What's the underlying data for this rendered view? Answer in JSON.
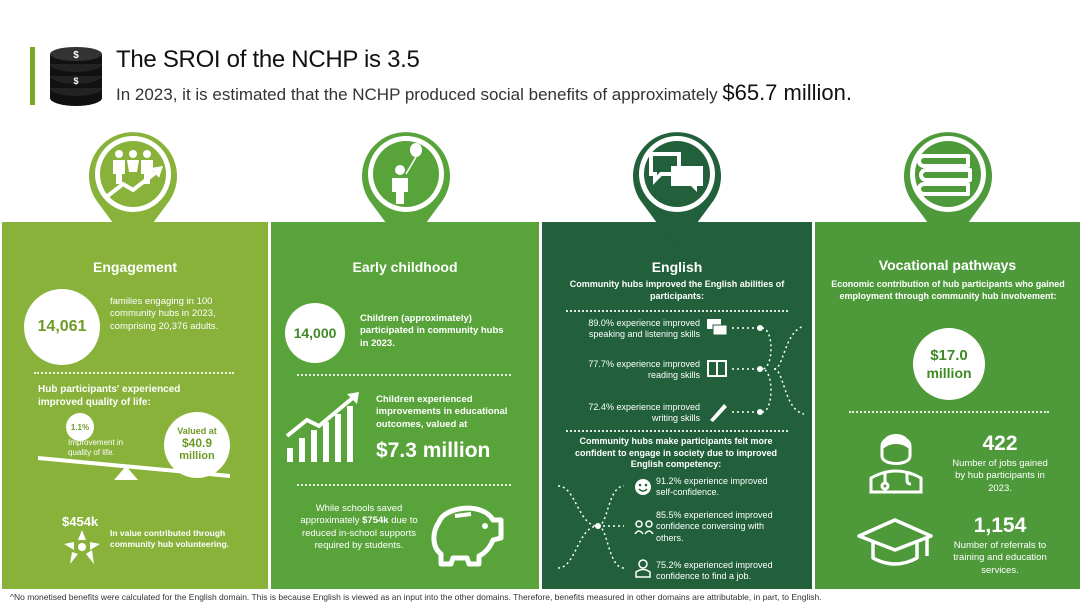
{
  "header": {
    "title": "The SROI of the NCHP is 3.5",
    "subtitle_prefix": "In 2023, it is estimated that the NCHP produced social benefits of approximately ",
    "subtitle_amount": "$65.7 million."
  },
  "colors": {
    "engagement": "#88b23a",
    "early_childhood": "#59a33b",
    "english": "#21603a",
    "vocational": "#4e9a3a"
  },
  "engagement": {
    "title": "Engagement",
    "icon": "people-growth-icon",
    "families_value": "14,061",
    "families_text": "families engaging in 100 community hubs in 2023, comprising 20,376 adults.",
    "quality_heading": "Hub participants' experienced improved quality of life:",
    "improvement_pct": "1.1%",
    "improvement_text": "Improvement in quality of life.",
    "valued_label": "Valued at",
    "valued_amount": "$40.9",
    "valued_unit": "million",
    "volunteer_value": "$454k",
    "volunteer_text": "In value contributed through community hub volunteering."
  },
  "early_childhood": {
    "title": "Early childhood",
    "icon": "child-balloon-icon",
    "children_value": "14,000",
    "children_text": "Children (approximately) participated in community hubs in 2023.",
    "edu_text": "Children experienced improvements in educational outcomes, valued at",
    "edu_amount": "$7.3 million",
    "schools_prefix": "While schools saved approximately ",
    "schools_amount": "$754k",
    "schools_suffix": " due to reduced in-school supports required by students."
  },
  "english": {
    "title": "English",
    "icon": "speech-bubbles-icon",
    "heading1": "Community hubs improved the English abilities of participants:",
    "items1": [
      {
        "text": "89.0% experience improved speaking and listening skills",
        "icon": "speech-icon"
      },
      {
        "text": "77.7% experience improved reading skills",
        "icon": "book-icon"
      },
      {
        "text": "72.4% experience improved writing skills",
        "icon": "pen-icon"
      }
    ],
    "heading2": "Community hubs make participants felt more confident to engage in society due to improved English competency:",
    "items2": [
      {
        "text": "91.2% experience improved self-confidence.",
        "icon": "smiley-icon"
      },
      {
        "text": "85.5% experienced improved confidence conversing with others.",
        "icon": "group-icon"
      },
      {
        "text": "75.2% experienced improved confidence to find a job.",
        "icon": "worker-icon"
      }
    ]
  },
  "vocational": {
    "title": "Vocational pathways",
    "icon": "books-icon",
    "heading": "Economic contribution of hub participants who gained employment through community hub involvement:",
    "amount": "$17.0",
    "amount_unit": "million",
    "jobs_value": "422",
    "jobs_text": "Number of jobs gained by hub participants in 2023.",
    "referrals_value": "1,154",
    "referrals_text": "Number of referrals to training and education services."
  },
  "footnote": "^No monetised benefits were calculated for the English domain. This is because English is viewed as an input into the other domains. Therefore, benefits measured in other domains are attributable, in part, to English."
}
